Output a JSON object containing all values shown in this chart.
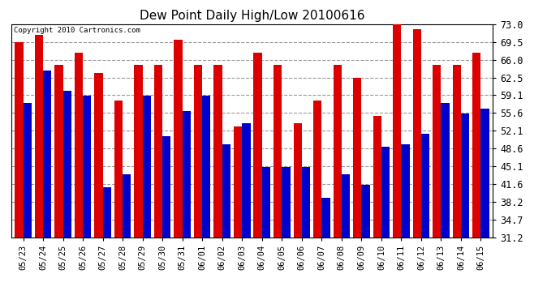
{
  "title": "Dew Point Daily High/Low 20100616",
  "copyright": "Copyright 2010 Cartronics.com",
  "dates": [
    "05/23",
    "05/24",
    "05/25",
    "05/26",
    "05/27",
    "05/28",
    "05/29",
    "05/30",
    "05/31",
    "06/01",
    "06/02",
    "06/03",
    "06/04",
    "06/05",
    "06/06",
    "06/07",
    "06/08",
    "06/09",
    "06/10",
    "06/11",
    "06/12",
    "06/13",
    "06/14",
    "06/15"
  ],
  "highs": [
    69.5,
    71.0,
    65.0,
    67.5,
    63.5,
    58.0,
    65.0,
    65.0,
    70.0,
    65.0,
    65.0,
    53.0,
    67.5,
    65.0,
    53.5,
    58.0,
    65.0,
    62.5,
    55.0,
    73.5,
    72.0,
    65.0,
    65.0,
    67.5
  ],
  "lows": [
    57.5,
    64.0,
    60.0,
    59.0,
    41.0,
    43.5,
    59.0,
    51.0,
    56.0,
    59.0,
    49.5,
    53.5,
    45.0,
    45.0,
    45.0,
    39.0,
    43.5,
    41.5,
    49.0,
    49.5,
    51.5,
    57.5,
    55.5,
    56.5
  ],
  "high_color": "#dd0000",
  "low_color": "#0000cc",
  "bg_color": "#ffffff",
  "plot_bg_color": "#ffffff",
  "grid_color": "#999999",
  "ymin": 31.2,
  "ymax": 73.0,
  "yticks": [
    31.2,
    34.7,
    38.2,
    41.6,
    45.1,
    48.6,
    52.1,
    55.6,
    59.1,
    62.5,
    66.0,
    69.5,
    73.0
  ],
  "bar_width": 0.42,
  "figwidth": 6.9,
  "figheight": 3.75,
  "dpi": 100
}
